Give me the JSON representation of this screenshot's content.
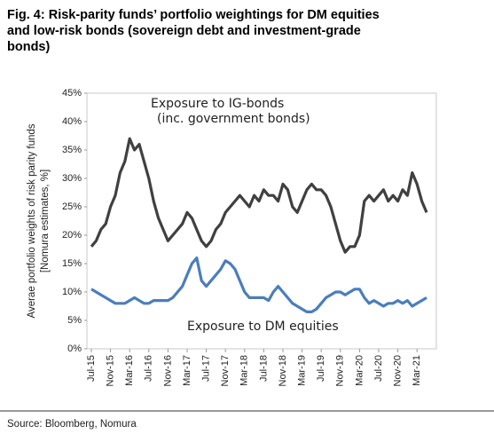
{
  "chart_data": {
    "type": "line",
    "title": [
      "Fig. 4: Risk-parity funds’ portfolio weightings for DM equities",
      "and low-risk bonds (sovereign debt and investment-grade",
      "bonds)"
    ],
    "y_label": [
      "Averae portfolio weights of risk parity funds",
      "[Nomura estimates, %]"
    ],
    "annotations": [
      "(inc. government bonds)"
    ],
    "source": "Source: Bloomberg, Nomura",
    "categories": [
      "Jul-15",
      null,
      null,
      null,
      "Nov-15",
      null,
      null,
      null,
      "Mar-16",
      null,
      null,
      null,
      "Jul-16",
      null,
      null,
      null,
      "Nov-16",
      null,
      null,
      null,
      "Mar-17",
      null,
      null,
      null,
      "Jul-17",
      null,
      null,
      null,
      "Nov-17",
      null,
      null,
      null,
      "Mar-18",
      null,
      null,
      null,
      "Jul-18",
      null,
      null,
      null,
      "Nov-18",
      null,
      null,
      null,
      "Mar-19",
      null,
      null,
      null,
      "Jul-19",
      null,
      null,
      null,
      "Nov-19",
      null,
      null,
      null,
      "Mar-20",
      null,
      null,
      null,
      "Jul-20",
      null,
      null,
      null,
      "Nov-20",
      null,
      null,
      null,
      "Mar-21",
      null,
      null
    ],
    "series": [
      {
        "name": "Exposure to IG-bonds",
        "color": "#404040",
        "values": [
          18,
          19,
          21,
          22,
          25,
          27,
          31,
          33,
          37,
          35,
          36,
          33,
          30,
          26,
          23,
          21,
          19,
          20,
          21,
          22,
          24,
          23,
          21,
          19,
          18,
          19,
          21,
          22,
          24,
          25,
          26,
          27,
          26,
          25,
          27,
          26,
          28,
          27,
          27,
          26,
          29,
          28,
          25,
          24,
          26,
          28,
          29,
          28,
          28,
          27,
          25,
          22,
          19,
          17,
          18,
          18,
          20,
          26,
          27,
          26,
          27,
          28,
          26,
          27,
          26,
          28,
          27,
          31,
          29,
          26,
          24
        ]
      },
      {
        "name": "Exposure to DM equities",
        "color": "#4a7ebb",
        "values": [
          10.5,
          10,
          9.5,
          9,
          8.5,
          8,
          8,
          8,
          8.5,
          9,
          8.5,
          8,
          8,
          8.5,
          8.5,
          8.5,
          8.5,
          9,
          10,
          11,
          13,
          15,
          16,
          12,
          11,
          12,
          13,
          14,
          15.5,
          15,
          14,
          12,
          10,
          9,
          9,
          9,
          9,
          8.5,
          10,
          11,
          10,
          9,
          8,
          7.5,
          7,
          6.5,
          6.5,
          7,
          8,
          9,
          9.5,
          10,
          10,
          9.5,
          10,
          10.5,
          10.5,
          9,
          8,
          8.5,
          8,
          7.5,
          8,
          8,
          8.5,
          8,
          8.5,
          7.5,
          8,
          8.5,
          9
        ]
      }
    ],
    "ylim": [
      0,
      45
    ],
    "yticks": [
      {
        "value": 0,
        "label": "0%"
      },
      {
        "value": 5,
        "label": "5%"
      },
      {
        "value": 10,
        "label": "10%"
      },
      {
        "value": 15,
        "label": "15%"
      },
      {
        "value": 20,
        "label": "20%"
      },
      {
        "value": 25,
        "label": "25%"
      },
      {
        "value": 30,
        "label": "30%"
      },
      {
        "value": 35,
        "label": "35%"
      },
      {
        "value": 40,
        "label": "40%"
      },
      {
        "value": 45,
        "label": "45%"
      }
    ],
    "grid": false
  }
}
